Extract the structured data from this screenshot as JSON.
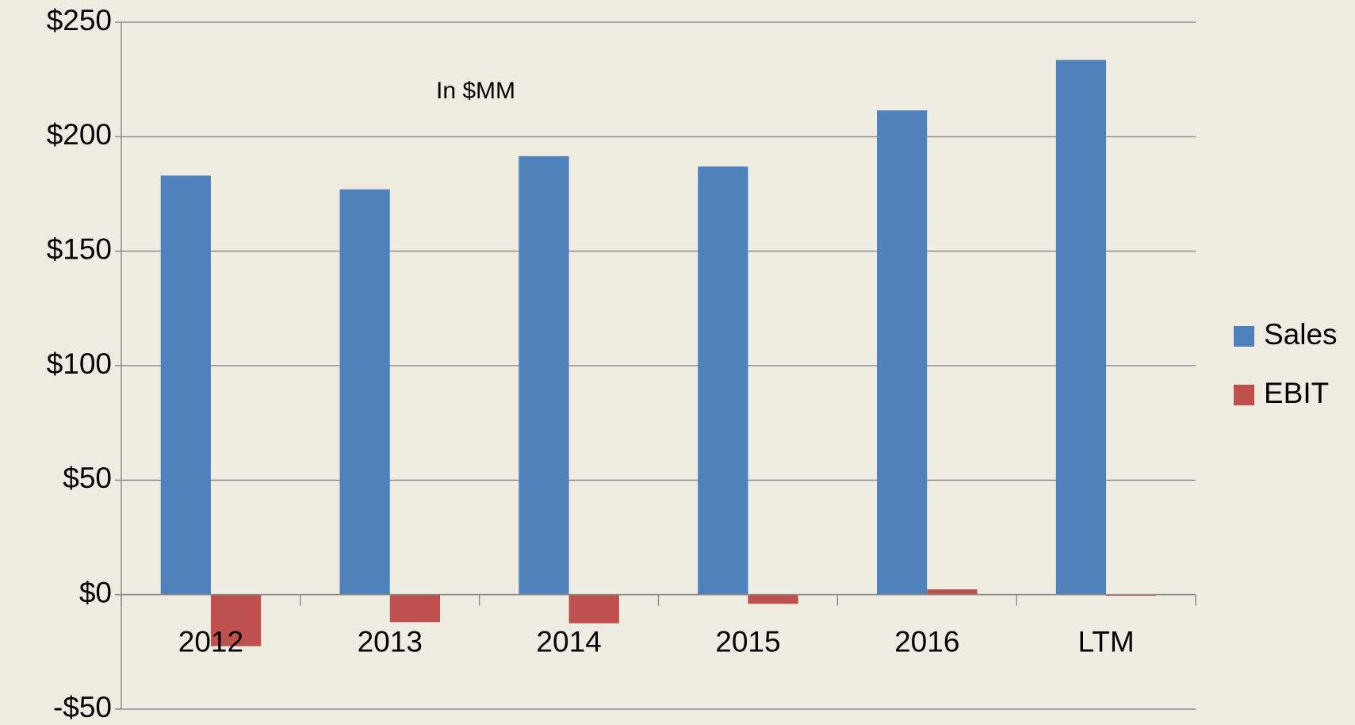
{
  "chart_data": {
    "type": "bar",
    "annotation": "In $MM",
    "categories": [
      "2012",
      "2013",
      "2014",
      "2015",
      "2016",
      "LTM"
    ],
    "series": [
      {
        "name": "Sales",
        "color": "#4f81bd",
        "values": [
          183,
          177,
          191.5,
          187,
          211.5,
          233.5
        ]
      },
      {
        "name": "EBIT",
        "color": "#c0504d",
        "values": [
          -22.5,
          -12,
          -12.5,
          -4,
          2.3,
          -0.5
        ]
      }
    ],
    "ylim": [
      -50,
      250
    ],
    "yticks": [
      {
        "value": -50,
        "label": "-$50"
      },
      {
        "value": 0,
        "label": "$0"
      },
      {
        "value": 50,
        "label": "$50"
      },
      {
        "value": 100,
        "label": "$100"
      },
      {
        "value": 150,
        "label": "$150"
      },
      {
        "value": 200,
        "label": "$200"
      },
      {
        "value": 250,
        "label": "$250"
      }
    ],
    "grid": true,
    "legend": "right"
  }
}
